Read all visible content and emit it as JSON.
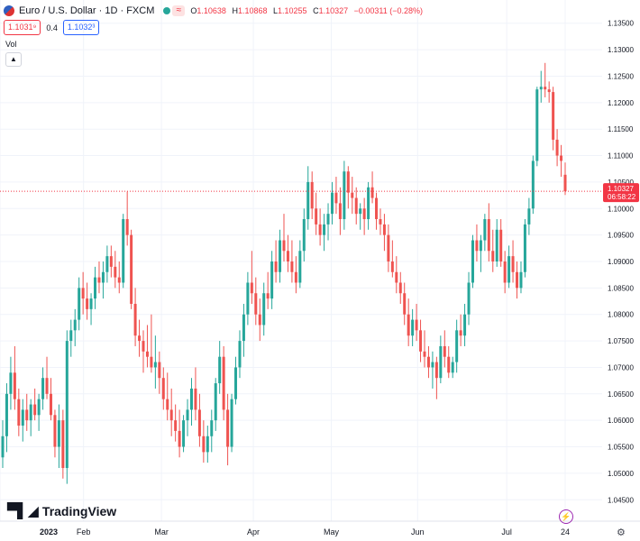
{
  "header": {
    "symbol": "Euro / U.S. Dollar · 1D · FXCM",
    "ohlc": [
      {
        "k": "O",
        "v": "1.10638"
      },
      {
        "k": "H",
        "v": "1.10868"
      },
      {
        "k": "L",
        "v": "1.10255"
      },
      {
        "k": "C",
        "v": "1.10327"
      }
    ],
    "change": "−0.00311 (−0.28%)",
    "sell_price": "1.1031⁹",
    "spread": "0.4",
    "buy_price": "1.1032³",
    "volume_label": "Vol"
  },
  "price_label": {
    "value": "1.10327",
    "countdown": "06:58:22"
  },
  "brand": "TradingView",
  "colors": {
    "up": "#26a69a",
    "down": "#ef5350",
    "price_line": "#f23645",
    "accent": "#9c27b0"
  },
  "icons": {
    "flag": "eur-usd-flag-icon",
    "bolt": "lightning-icon",
    "settings": "gear-icon",
    "collapse": "chevron-up-icon"
  },
  "chart_data": {
    "type": "candlestick",
    "y_ticks": [
      "1.04500",
      "1.05000",
      "1.05500",
      "1.06000",
      "1.06500",
      "1.07000",
      "1.07500",
      "1.08000",
      "1.08500",
      "1.09000",
      "1.09500",
      "1.10000",
      "1.10500",
      "1.11000",
      "1.11500",
      "1.12000",
      "1.12500",
      "1.13000",
      "1.13500"
    ],
    "ylim": [
      1.043,
      1.137
    ],
    "x_labels": [
      {
        "label": "2023",
        "date": "2023-01-02"
      },
      {
        "label": "Feb",
        "date": "2023-02-01"
      },
      {
        "label": "Mar",
        "date": "2023-03-01"
      },
      {
        "label": "Apr",
        "date": "2023-04-03"
      },
      {
        "label": "May",
        "date": "2023-05-01"
      },
      {
        "label": "Jun",
        "date": "2023-06-01"
      },
      {
        "label": "Jul",
        "date": "2023-07-03"
      },
      {
        "label": "24",
        "date": "2023-07-24"
      }
    ],
    "current_price": 1.10327,
    "candles": [
      {
        "o": 1.053,
        "h": 1.06,
        "l": 1.051,
        "c": 1.057
      },
      {
        "o": 1.057,
        "h": 1.067,
        "l": 1.054,
        "c": 1.065
      },
      {
        "o": 1.065,
        "h": 1.072,
        "l": 1.062,
        "c": 1.069
      },
      {
        "o": 1.069,
        "h": 1.074,
        "l": 1.062,
        "c": 1.064
      },
      {
        "o": 1.064,
        "h": 1.066,
        "l": 1.057,
        "c": 1.059
      },
      {
        "o": 1.059,
        "h": 1.064,
        "l": 1.056,
        "c": 1.062
      },
      {
        "o": 1.062,
        "h": 1.065,
        "l": 1.058,
        "c": 1.06
      },
      {
        "o": 1.06,
        "h": 1.064,
        "l": 1.057,
        "c": 1.063
      },
      {
        "o": 1.063,
        "h": 1.066,
        "l": 1.06,
        "c": 1.061
      },
      {
        "o": 1.061,
        "h": 1.065,
        "l": 1.058,
        "c": 1.064
      },
      {
        "o": 1.064,
        "h": 1.07,
        "l": 1.062,
        "c": 1.068
      },
      {
        "o": 1.068,
        "h": 1.072,
        "l": 1.064,
        "c": 1.065
      },
      {
        "o": 1.065,
        "h": 1.068,
        "l": 1.06,
        "c": 1.061
      },
      {
        "o": 1.061,
        "h": 1.062,
        "l": 1.053,
        "c": 1.055
      },
      {
        "o": 1.055,
        "h": 1.063,
        "l": 1.051,
        "c": 1.06
      },
      {
        "o": 1.06,
        "h": 1.062,
        "l": 1.049,
        "c": 1.051
      },
      {
        "o": 1.051,
        "h": 1.077,
        "l": 1.048,
        "c": 1.075
      },
      {
        "o": 1.075,
        "h": 1.079,
        "l": 1.072,
        "c": 1.077
      },
      {
        "o": 1.077,
        "h": 1.081,
        "l": 1.074,
        "c": 1.079
      },
      {
        "o": 1.079,
        "h": 1.087,
        "l": 1.077,
        "c": 1.085
      },
      {
        "o": 1.085,
        "h": 1.088,
        "l": 1.08,
        "c": 1.083
      },
      {
        "o": 1.083,
        "h": 1.086,
        "l": 1.079,
        "c": 1.081
      },
      {
        "o": 1.081,
        "h": 1.084,
        "l": 1.078,
        "c": 1.083
      },
      {
        "o": 1.083,
        "h": 1.089,
        "l": 1.081,
        "c": 1.087
      },
      {
        "o": 1.087,
        "h": 1.09,
        "l": 1.084,
        "c": 1.086
      },
      {
        "o": 1.086,
        "h": 1.09,
        "l": 1.083,
        "c": 1.088
      },
      {
        "o": 1.088,
        "h": 1.093,
        "l": 1.086,
        "c": 1.091
      },
      {
        "o": 1.091,
        "h": 1.093,
        "l": 1.087,
        "c": 1.089
      },
      {
        "o": 1.089,
        "h": 1.092,
        "l": 1.085,
        "c": 1.087
      },
      {
        "o": 1.087,
        "h": 1.09,
        "l": 1.084,
        "c": 1.086
      },
      {
        "o": 1.086,
        "h": 1.099,
        "l": 1.085,
        "c": 1.098
      },
      {
        "o": 1.098,
        "h": 1.1032,
        "l": 1.093,
        "c": 1.095
      },
      {
        "o": 1.095,
        "h": 1.096,
        "l": 1.081,
        "c": 1.082
      },
      {
        "o": 1.082,
        "h": 1.085,
        "l": 1.074,
        "c": 1.076
      },
      {
        "o": 1.076,
        "h": 1.079,
        "l": 1.072,
        "c": 1.075
      },
      {
        "o": 1.075,
        "h": 1.077,
        "l": 1.069,
        "c": 1.073
      },
      {
        "o": 1.073,
        "h": 1.078,
        "l": 1.07,
        "c": 1.072
      },
      {
        "o": 1.072,
        "h": 1.08,
        "l": 1.069,
        "c": 1.07
      },
      {
        "o": 1.07,
        "h": 1.076,
        "l": 1.066,
        "c": 1.071
      },
      {
        "o": 1.071,
        "h": 1.073,
        "l": 1.065,
        "c": 1.068
      },
      {
        "o": 1.068,
        "h": 1.07,
        "l": 1.062,
        "c": 1.064
      },
      {
        "o": 1.064,
        "h": 1.069,
        "l": 1.06,
        "c": 1.062
      },
      {
        "o": 1.062,
        "h": 1.066,
        "l": 1.057,
        "c": 1.06
      },
      {
        "o": 1.06,
        "h": 1.063,
        "l": 1.056,
        "c": 1.058
      },
      {
        "o": 1.058,
        "h": 1.062,
        "l": 1.053,
        "c": 1.055
      },
      {
        "o": 1.055,
        "h": 1.061,
        "l": 1.054,
        "c": 1.06
      },
      {
        "o": 1.06,
        "h": 1.064,
        "l": 1.057,
        "c": 1.062
      },
      {
        "o": 1.062,
        "h": 1.068,
        "l": 1.059,
        "c": 1.066
      },
      {
        "o": 1.066,
        "h": 1.07,
        "l": 1.06,
        "c": 1.062
      },
      {
        "o": 1.062,
        "h": 1.065,
        "l": 1.055,
        "c": 1.057
      },
      {
        "o": 1.057,
        "h": 1.06,
        "l": 1.052,
        "c": 1.054
      },
      {
        "o": 1.054,
        "h": 1.059,
        "l": 1.052,
        "c": 1.057
      },
      {
        "o": 1.057,
        "h": 1.062,
        "l": 1.054,
        "c": 1.06
      },
      {
        "o": 1.06,
        "h": 1.068,
        "l": 1.058,
        "c": 1.067
      },
      {
        "o": 1.067,
        "h": 1.075,
        "l": 1.065,
        "c": 1.072
      },
      {
        "o": 1.072,
        "h": 1.074,
        "l": 1.06,
        "c": 1.062
      },
      {
        "o": 1.062,
        "h": 1.065,
        "l": 1.0515,
        "c": 1.055
      },
      {
        "o": 1.055,
        "h": 1.065,
        "l": 1.054,
        "c": 1.064
      },
      {
        "o": 1.064,
        "h": 1.072,
        "l": 1.063,
        "c": 1.07
      },
      {
        "o": 1.07,
        "h": 1.077,
        "l": 1.068,
        "c": 1.075
      },
      {
        "o": 1.075,
        "h": 1.082,
        "l": 1.072,
        "c": 1.08
      },
      {
        "o": 1.08,
        "h": 1.088,
        "l": 1.078,
        "c": 1.086
      },
      {
        "o": 1.086,
        "h": 1.092,
        "l": 1.082,
        "c": 1.084
      },
      {
        "o": 1.084,
        "h": 1.087,
        "l": 1.078,
        "c": 1.08
      },
      {
        "o": 1.08,
        "h": 1.083,
        "l": 1.075,
        "c": 1.078
      },
      {
        "o": 1.078,
        "h": 1.086,
        "l": 1.076,
        "c": 1.084
      },
      {
        "o": 1.084,
        "h": 1.088,
        "l": 1.081,
        "c": 1.083
      },
      {
        "o": 1.083,
        "h": 1.092,
        "l": 1.081,
        "c": 1.09
      },
      {
        "o": 1.09,
        "h": 1.094,
        "l": 1.086,
        "c": 1.088
      },
      {
        "o": 1.088,
        "h": 1.096,
        "l": 1.086,
        "c": 1.094
      },
      {
        "o": 1.094,
        "h": 1.099,
        "l": 1.09,
        "c": 1.092
      },
      {
        "o": 1.092,
        "h": 1.095,
        "l": 1.088,
        "c": 1.09
      },
      {
        "o": 1.09,
        "h": 1.094,
        "l": 1.086,
        "c": 1.088
      },
      {
        "o": 1.088,
        "h": 1.091,
        "l": 1.084,
        "c": 1.086
      },
      {
        "o": 1.086,
        "h": 1.094,
        "l": 1.085,
        "c": 1.092
      },
      {
        "o": 1.092,
        "h": 1.1,
        "l": 1.09,
        "c": 1.098
      },
      {
        "o": 1.098,
        "h": 1.108,
        "l": 1.096,
        "c": 1.105
      },
      {
        "o": 1.105,
        "h": 1.107,
        "l": 1.098,
        "c": 1.1
      },
      {
        "o": 1.1,
        "h": 1.103,
        "l": 1.095,
        "c": 1.097
      },
      {
        "o": 1.097,
        "h": 1.1,
        "l": 1.093,
        "c": 1.095
      },
      {
        "o": 1.095,
        "h": 1.099,
        "l": 1.092,
        "c": 1.097
      },
      {
        "o": 1.097,
        "h": 1.101,
        "l": 1.094,
        "c": 1.099
      },
      {
        "o": 1.099,
        "h": 1.105,
        "l": 1.097,
        "c": 1.103
      },
      {
        "o": 1.103,
        "h": 1.106,
        "l": 1.099,
        "c": 1.101
      },
      {
        "o": 1.101,
        "h": 1.104,
        "l": 1.095,
        "c": 1.098
      },
      {
        "o": 1.098,
        "h": 1.109,
        "l": 1.096,
        "c": 1.107
      },
      {
        "o": 1.107,
        "h": 1.108,
        "l": 1.1,
        "c": 1.103
      },
      {
        "o": 1.103,
        "h": 1.106,
        "l": 1.099,
        "c": 1.102
      },
      {
        "o": 1.102,
        "h": 1.104,
        "l": 1.097,
        "c": 1.099
      },
      {
        "o": 1.099,
        "h": 1.101,
        "l": 1.096,
        "c": 1.1
      },
      {
        "o": 1.1,
        "h": 1.102,
        "l": 1.095,
        "c": 1.098
      },
      {
        "o": 1.098,
        "h": 1.105,
        "l": 1.096,
        "c": 1.104
      },
      {
        "o": 1.104,
        "h": 1.107,
        "l": 1.101,
        "c": 1.102
      },
      {
        "o": 1.102,
        "h": 1.103,
        "l": 1.096,
        "c": 1.098
      },
      {
        "o": 1.098,
        "h": 1.1,
        "l": 1.095,
        "c": 1.097
      },
      {
        "o": 1.097,
        "h": 1.099,
        "l": 1.092,
        "c": 1.095
      },
      {
        "o": 1.095,
        "h": 1.097,
        "l": 1.088,
        "c": 1.09
      },
      {
        "o": 1.09,
        "h": 1.094,
        "l": 1.087,
        "c": 1.088
      },
      {
        "o": 1.088,
        "h": 1.091,
        "l": 1.084,
        "c": 1.086
      },
      {
        "o": 1.086,
        "h": 1.088,
        "l": 1.082,
        "c": 1.084
      },
      {
        "o": 1.084,
        "h": 1.086,
        "l": 1.078,
        "c": 1.08
      },
      {
        "o": 1.08,
        "h": 1.083,
        "l": 1.074,
        "c": 1.076
      },
      {
        "o": 1.076,
        "h": 1.081,
        "l": 1.074,
        "c": 1.079
      },
      {
        "o": 1.079,
        "h": 1.082,
        "l": 1.075,
        "c": 1.077
      },
      {
        "o": 1.077,
        "h": 1.079,
        "l": 1.071,
        "c": 1.073
      },
      {
        "o": 1.073,
        "h": 1.077,
        "l": 1.07,
        "c": 1.072
      },
      {
        "o": 1.072,
        "h": 1.074,
        "l": 1.068,
        "c": 1.07
      },
      {
        "o": 1.07,
        "h": 1.073,
        "l": 1.066,
        "c": 1.071
      },
      {
        "o": 1.071,
        "h": 1.072,
        "l": 1.064,
        "c": 1.068
      },
      {
        "o": 1.068,
        "h": 1.076,
        "l": 1.067,
        "c": 1.074
      },
      {
        "o": 1.074,
        "h": 1.077,
        "l": 1.07,
        "c": 1.072
      },
      {
        "o": 1.072,
        "h": 1.074,
        "l": 1.068,
        "c": 1.069
      },
      {
        "o": 1.069,
        "h": 1.072,
        "l": 1.068,
        "c": 1.071
      },
      {
        "o": 1.071,
        "h": 1.079,
        "l": 1.069,
        "c": 1.077
      },
      {
        "o": 1.077,
        "h": 1.08,
        "l": 1.074,
        "c": 1.076
      },
      {
        "o": 1.076,
        "h": 1.082,
        "l": 1.074,
        "c": 1.08
      },
      {
        "o": 1.08,
        "h": 1.088,
        "l": 1.078,
        "c": 1.086
      },
      {
        "o": 1.086,
        "h": 1.095,
        "l": 1.085,
        "c": 1.094
      },
      {
        "o": 1.094,
        "h": 1.097,
        "l": 1.09,
        "c": 1.092
      },
      {
        "o": 1.092,
        "h": 1.095,
        "l": 1.088,
        "c": 1.094
      },
      {
        "o": 1.094,
        "h": 1.099,
        "l": 1.092,
        "c": 1.098
      },
      {
        "o": 1.098,
        "h": 1.101,
        "l": 1.09,
        "c": 1.092
      },
      {
        "o": 1.092,
        "h": 1.096,
        "l": 1.088,
        "c": 1.09
      },
      {
        "o": 1.09,
        "h": 1.098,
        "l": 1.089,
        "c": 1.096
      },
      {
        "o": 1.096,
        "h": 1.098,
        "l": 1.089,
        "c": 1.09
      },
      {
        "o": 1.09,
        "h": 1.092,
        "l": 1.084,
        "c": 1.086
      },
      {
        "o": 1.086,
        "h": 1.093,
        "l": 1.085,
        "c": 1.091
      },
      {
        "o": 1.091,
        "h": 1.094,
        "l": 1.086,
        "c": 1.088
      },
      {
        "o": 1.088,
        "h": 1.09,
        "l": 1.083,
        "c": 1.085
      },
      {
        "o": 1.085,
        "h": 1.09,
        "l": 1.084,
        "c": 1.088
      },
      {
        "o": 1.088,
        "h": 1.098,
        "l": 1.087,
        "c": 1.097
      },
      {
        "o": 1.097,
        "h": 1.102,
        "l": 1.095,
        "c": 1.1
      },
      {
        "o": 1.1,
        "h": 1.11,
        "l": 1.099,
        "c": 1.109
      },
      {
        "o": 1.109,
        "h": 1.123,
        "l": 1.108,
        "c": 1.1225
      },
      {
        "o": 1.1225,
        "h": 1.126,
        "l": 1.12,
        "c": 1.123
      },
      {
        "o": 1.123,
        "h": 1.1275,
        "l": 1.121,
        "c": 1.1225
      },
      {
        "o": 1.1225,
        "h": 1.124,
        "l": 1.12,
        "c": 1.122
      },
      {
        "o": 1.122,
        "h": 1.123,
        "l": 1.111,
        "c": 1.113
      },
      {
        "o": 1.113,
        "h": 1.115,
        "l": 1.108,
        "c": 1.11
      },
      {
        "o": 1.11,
        "h": 1.112,
        "l": 1.106,
        "c": 1.109
      },
      {
        "o": 1.10638,
        "h": 1.10868,
        "l": 1.10255,
        "c": 1.10327
      }
    ]
  }
}
